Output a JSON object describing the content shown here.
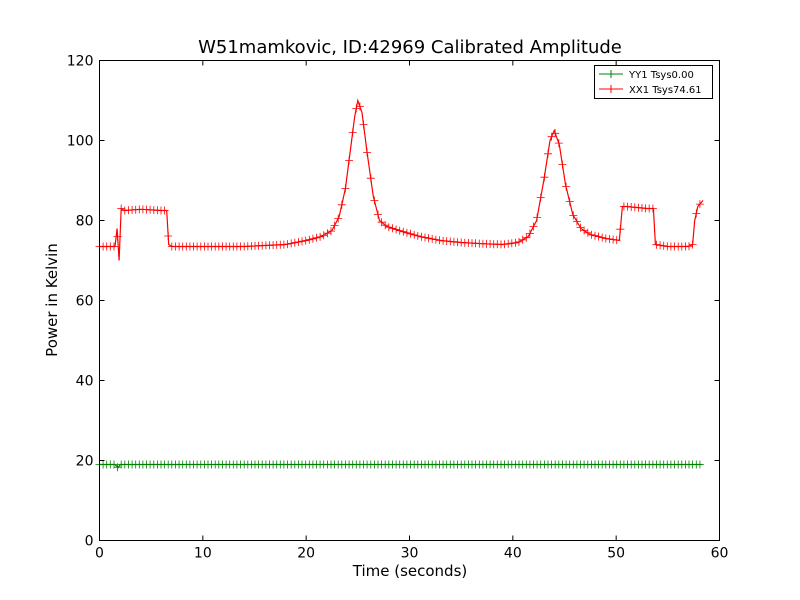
{
  "chart_data": {
    "type": "line",
    "title": "W51mamkovic, ID:42969 Calibrated Amplitude",
    "xlabel": "Time (seconds)",
    "ylabel": "Power in Kelvin",
    "xlim": [
      0,
      60
    ],
    "ylim": [
      0,
      120
    ],
    "xticks": [
      "0",
      "10",
      "20",
      "30",
      "40",
      "50",
      "60"
    ],
    "yticks": [
      "0",
      "20",
      "40",
      "60",
      "80",
      "100",
      "120"
    ],
    "grid": false,
    "legend_position": "top-right",
    "marker": "+",
    "series": [
      {
        "name": "YY1 Tsys0.00",
        "color": "#008000",
        "x": [
          0,
          1.5,
          1.8,
          2.0,
          2.2,
          58.3
        ],
        "y": [
          19,
          19,
          18.2,
          19,
          19,
          19
        ]
      },
      {
        "name": "XX1 Tsys74.61",
        "color": "#ff0000",
        "x": [
          0,
          1.5,
          1.7,
          1.9,
          2.1,
          2.4,
          4,
          6,
          6.5,
          6.7,
          7,
          10,
          14,
          18,
          20,
          21.5,
          22.5,
          23.2,
          23.8,
          24.3,
          24.7,
          25.0,
          25.4,
          25.9,
          26.5,
          27.1,
          27.8,
          29,
          31,
          33,
          35,
          37,
          39,
          40.5,
          41.5,
          42.3,
          43.0,
          43.6,
          44.0,
          44.5,
          45.1,
          45.8,
          46.6,
          47.5,
          49,
          50.3,
          50.6,
          51,
          53,
          53.6,
          53.8,
          55,
          57,
          57.4,
          57.6,
          57.9,
          58.4
        ],
        "y": [
          73.5,
          73.5,
          78,
          70,
          83,
          82.5,
          82.8,
          82.5,
          82.5,
          74,
          73.5,
          73.5,
          73.5,
          74,
          75,
          76,
          77.5,
          81,
          88,
          98,
          106,
          110,
          107,
          97,
          86,
          80,
          78.5,
          77.5,
          76,
          75,
          74.5,
          74.2,
          74,
          74.5,
          76,
          80,
          90,
          100,
          102.5,
          99,
          89,
          81.5,
          78,
          76.5,
          75.5,
          75,
          83.5,
          83.5,
          83,
          83,
          74,
          73.5,
          73.5,
          74,
          80,
          83.5,
          85
        ]
      }
    ]
  }
}
